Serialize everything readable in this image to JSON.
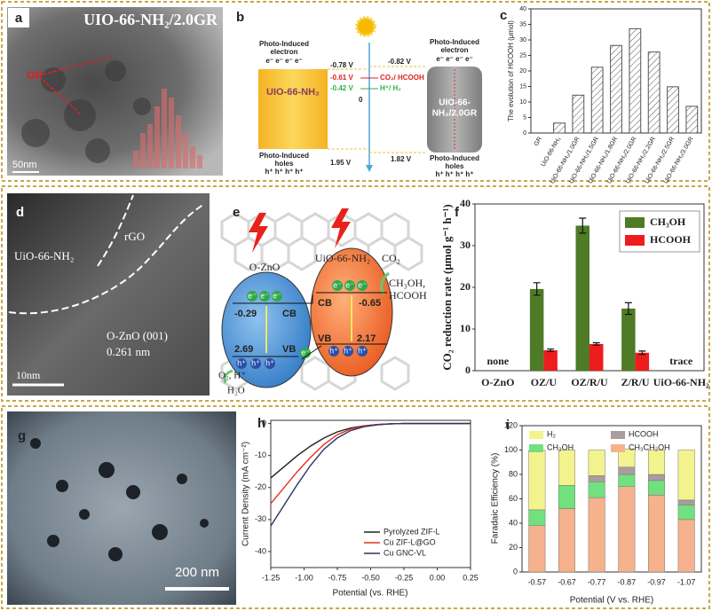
{
  "panels": {
    "a": {
      "label": "a",
      "title": "UIO-66-NH₂/2.0GR",
      "marker": "GR",
      "scale": "50nm"
    },
    "b": {
      "label": "b",
      "left_top": [
        "Photo-Induced",
        "electron",
        "e⁻ e⁻ e⁻ e⁻"
      ],
      "left_box": "UIO-66-NH₂",
      "left_bottom": [
        "Photo-Induced",
        "holes",
        "h⁺ h⁺ h⁺ h⁺"
      ],
      "right_top": [
        "Photo-Induced",
        "electron",
        "e⁻ e⁻ e⁻ e⁻"
      ],
      "right_box": [
        "UIO-66-",
        "NH₂/2.0GR"
      ],
      "right_bottom": [
        "Photo-Induced",
        "holes",
        "h⁺ h⁺ h⁺ h⁺"
      ],
      "levels_left": [
        "-0.78 V",
        "-0.61 V",
        "-0.42 V",
        "0",
        "1.95 V"
      ],
      "levels_right": [
        "-0.82 V",
        "1.82 V"
      ],
      "redox": [
        "CO₂/ HCOOH",
        "H⁺/ H₂"
      ]
    },
    "d": {
      "label": "d",
      "material": "UiO-66-NH₂",
      "support": "rGO",
      "facet": "O-ZnO (001)",
      "spacing": "0.261 nm",
      "scale": "10nm"
    },
    "e": {
      "label": "e",
      "left_name": "O-ZnO",
      "right_name": "UiO-66-NH₂",
      "reactant": "CO₂",
      "products": [
        "CH₃OH,",
        "HCOOH"
      ],
      "oxidation": [
        "O₂, H⁺",
        "H₂O"
      ],
      "left_bands": [
        "-0.29",
        "CB",
        "2.69",
        "VB"
      ],
      "right_bands": [
        "-0.65",
        "CB",
        "2.17",
        "VB"
      ],
      "electron": "e⁻",
      "hole": "h⁺"
    },
    "g": {
      "label": "g",
      "scale": "200 nm"
    }
  },
  "chart_data": [
    {
      "type": "bar",
      "label": "c",
      "ylabel": "The evolution of HCOOH (μmol)",
      "categories": [
        "GR",
        "UiO-66-NH₂",
        "UiO-66-NH₂/1.0GR",
        "UiO-66-NH₂/1.5GR",
        "UiO-66-NH₂/1.8GR",
        "UiO-66-NH₂/2.0GR",
        "UiO-66-NH₂/2.2GR",
        "UiO-66-NH₂/2.5GR",
        "UiO-66-NH₂/3.0GR"
      ],
      "values": [
        0,
        3.2,
        12.2,
        21.2,
        28.2,
        33.6,
        26.1,
        14.9,
        8.6
      ],
      "color": "#555555",
      "hatch": true,
      "ylim": [
        0,
        40
      ],
      "yticks": [
        0,
        5,
        10,
        15,
        20,
        25,
        30,
        35,
        40
      ],
      "grid": false
    },
    {
      "type": "bar",
      "label": "f",
      "ylabel": "CO₂ reduction rate (μmol g⁻¹ h⁻¹)",
      "categories": [
        "O-ZnO",
        "OZ/U",
        "OZ/R/U",
        "Z/R/U",
        "UiO-66-NH₂"
      ],
      "series": [
        {
          "name": "CH₃OH",
          "color": "#4e7b26",
          "values": [
            null,
            19.6,
            34.8,
            14.9,
            null
          ],
          "errors": [
            null,
            1.5,
            1.8,
            1.4,
            null
          ]
        },
        {
          "name": "HCOOH",
          "color": "#ee1c1c",
          "values": [
            null,
            4.9,
            6.4,
            4.3,
            null
          ],
          "errors": [
            null,
            0.3,
            0.3,
            0.4,
            null
          ]
        }
      ],
      "annotations": [
        {
          "text": "none",
          "x": "O-ZnO"
        },
        {
          "text": "trace",
          "x": "UiO-66-NH₂"
        }
      ],
      "ylim": [
        0,
        40
      ],
      "yticks": [
        0,
        10,
        20,
        30,
        40
      ],
      "legend": "upper right",
      "grid": false
    },
    {
      "type": "line",
      "label": "h",
      "xlabel": "Potential (vs. RHE)",
      "ylabel": "Current Density (mA cm⁻²)",
      "x": [
        -1.25,
        -1.15,
        -1.05,
        -0.95,
        -0.85,
        -0.75,
        -0.65,
        -0.55,
        -0.45,
        -0.35,
        -0.25,
        -0.15,
        0,
        0.25
      ],
      "series": [
        {
          "name": "Pyrolyzed ZIF-L",
          "color": "#222222",
          "values": [
            -17,
            -13.5,
            -10,
            -7,
            -4.5,
            -2.6,
            -1.4,
            -0.7,
            -0.3,
            -0.1,
            0,
            0,
            0,
            0
          ]
        },
        {
          "name": "Cu ZIF-L@GO",
          "color": "#e2321e",
          "values": [
            -25,
            -20,
            -15,
            -10.5,
            -6.5,
            -3.5,
            -1.7,
            -0.8,
            -0.3,
            -0.1,
            0,
            0,
            0,
            0
          ]
        },
        {
          "name": "Cu GNC-VL",
          "color": "#2b3566",
          "values": [
            -32,
            -25.5,
            -19,
            -13,
            -8,
            -4.5,
            -2.2,
            -1,
            -0.4,
            -0.1,
            0,
            0,
            0,
            0
          ]
        }
      ],
      "xlim": [
        -1.25,
        0.25
      ],
      "xticks": [
        -1.25,
        {
          "value": -1,
          "label": "-1.00"
        },
        -0.75,
        {
          "value": -0.5,
          "label": "-0.50"
        },
        -0.25,
        {
          "value": 0,
          "label": "0.00"
        },
        0.25
      ],
      "ylim": [
        -45,
        1
      ],
      "yticks": [
        0,
        -10,
        -20,
        -30,
        -40
      ],
      "legend": "lower right",
      "grid": false
    },
    {
      "type": "stacked_bar",
      "label": "i",
      "xlabel": "Potential (V vs. RHE)",
      "ylabel": "Faradaic Efficiency (%)",
      "categories": [
        "-0.57",
        "-0.67",
        "-0.77",
        "-0.87",
        "-0.97",
        "-1.07"
      ],
      "series": [
        {
          "name": "CH₃CH₂OH",
          "color": "#f5b28c",
          "values": [
            38,
            52,
            61,
            70,
            63,
            43
          ]
        },
        {
          "name": "CH₃OH",
          "color": "#72e07e",
          "values": [
            13,
            19,
            13,
            10,
            12,
            12
          ]
        },
        {
          "name": "HCOOH",
          "color": "#a99c9e",
          "values": [
            0,
            0,
            5,
            6,
            5,
            4
          ]
        },
        {
          "name": "H₂",
          "color": "#f3f38d",
          "values": [
            49,
            29,
            21,
            15,
            20,
            41
          ]
        }
      ],
      "ylim": [
        0,
        120
      ],
      "yticks": [
        0,
        20,
        40,
        60,
        80,
        100,
        120
      ],
      "legend": "top",
      "grid": false
    }
  ]
}
